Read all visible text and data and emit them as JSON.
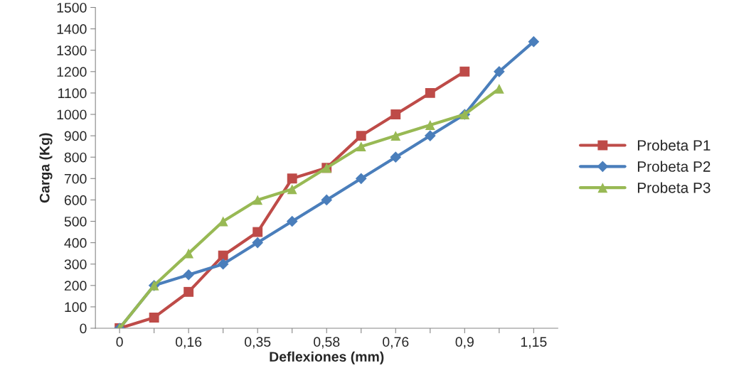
{
  "chart_data": {
    "type": "line",
    "xlabel": "Deflexiones (mm)",
    "ylabel": "Carga (Kg)",
    "categories": [
      "0",
      null,
      "0,16",
      null,
      "0,35",
      null,
      "0,58",
      null,
      "0,76",
      null,
      "0,9",
      null,
      "1,15"
    ],
    "ylim": [
      0,
      1500
    ],
    "yticks": [
      0,
      100,
      200,
      300,
      400,
      500,
      600,
      700,
      800,
      900,
      1000,
      1100,
      1200,
      1300,
      1400,
      1500
    ],
    "grid": false,
    "legend": "right",
    "series": [
      {
        "name": "Probeta P1",
        "color": "#be4b48",
        "marker": "square",
        "values": [
          0,
          50,
          170,
          340,
          450,
          700,
          750,
          900,
          1000,
          1100,
          1200,
          null,
          null
        ]
      },
      {
        "name": "Probeta P2",
        "color": "#4a7ebb",
        "marker": "diamond",
        "values": [
          0,
          200,
          250,
          300,
          400,
          500,
          600,
          700,
          800,
          900,
          1000,
          1200,
          1340
        ]
      },
      {
        "name": "Probeta P3",
        "color": "#98b954",
        "marker": "triangle",
        "values": [
          0,
          200,
          350,
          500,
          600,
          650,
          750,
          850,
          900,
          950,
          1000,
          1120,
          null
        ]
      }
    ]
  }
}
